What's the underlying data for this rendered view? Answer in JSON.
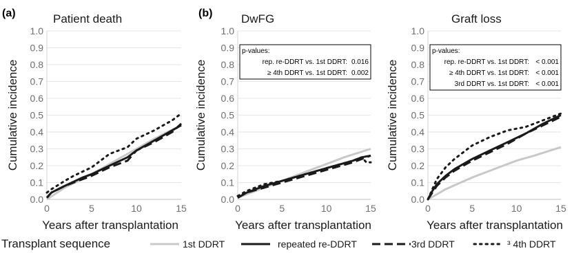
{
  "legend": {
    "title": "Transplant sequence",
    "items": [
      {
        "key": "first",
        "label": "1st DDRT",
        "color": "#c8c8c8",
        "style": "solid"
      },
      {
        "key": "repeated",
        "label": "repeated re-DDRT",
        "color": "#1a1a1a",
        "style": "solid"
      },
      {
        "key": "third",
        "label": "3rd DDRT",
        "color": "#1a1a1a",
        "style": "dashed"
      },
      {
        "key": "fourth",
        "label": "³ 4th DDRT",
        "color": "#1a1a1a",
        "style": "dotted"
      }
    ]
  },
  "chart_data": [
    {
      "type": "line",
      "panel_label": "(a)",
      "title": "Patient death",
      "xlabel": "Years after transplantation",
      "ylabel": "Cumulative incidence",
      "xlim": [
        0,
        15
      ],
      "ylim": [
        0,
        1.0
      ],
      "xticks": [
        0,
        5,
        10,
        15
      ],
      "yticks": [
        0.0,
        0.1,
        0.2,
        0.3,
        0.4,
        0.5,
        0.6,
        0.7,
        0.8,
        0.9,
        1.0
      ],
      "ytick_labels": [
        "0.0",
        "0.1",
        "0.2",
        "0.3",
        "0.4",
        "0.5",
        "0.6",
        "0.7",
        "0.8",
        "0.9",
        "1.0"
      ],
      "annotation": null,
      "series": [
        {
          "key": "first",
          "x": [
            0,
            2,
            5,
            8,
            10,
            12,
            15
          ],
          "y": [
            0.0,
            0.07,
            0.15,
            0.24,
            0.3,
            0.36,
            0.44
          ]
        },
        {
          "key": "repeated",
          "x": [
            0,
            0.5,
            2,
            4,
            5,
            7,
            9,
            10,
            12,
            14,
            15
          ],
          "y": [
            0.01,
            0.04,
            0.08,
            0.13,
            0.15,
            0.2,
            0.25,
            0.29,
            0.35,
            0.41,
            0.44
          ]
        },
        {
          "key": "third",
          "x": [
            0,
            0.5,
            2,
            4,
            5,
            7,
            9,
            10,
            12,
            14,
            15
          ],
          "y": [
            0.01,
            0.04,
            0.08,
            0.12,
            0.14,
            0.19,
            0.23,
            0.29,
            0.34,
            0.4,
            0.45
          ]
        },
        {
          "key": "fourth",
          "x": [
            0,
            0.5,
            2,
            3,
            5,
            7,
            9,
            10,
            12,
            14,
            15
          ],
          "y": [
            0.04,
            0.06,
            0.11,
            0.14,
            0.19,
            0.27,
            0.31,
            0.36,
            0.41,
            0.47,
            0.51
          ]
        }
      ]
    },
    {
      "type": "line",
      "panel_label": "(b)",
      "title": "DwFG",
      "xlabel": "Years after transplantation",
      "ylabel": "Cumulative incidence",
      "xlim": [
        0,
        15
      ],
      "ylim": [
        0,
        1.0
      ],
      "xticks": [
        0,
        5,
        10,
        15
      ],
      "yticks": [
        0.0,
        0.1,
        0.2,
        0.3,
        0.4,
        0.5,
        0.6,
        0.7,
        0.8,
        0.9,
        1.0
      ],
      "ytick_labels": [
        "0.0",
        "0.1",
        "0.2",
        "0.3",
        "0.4",
        "0.5",
        "0.6",
        "0.7",
        "0.8",
        "0.9",
        "1.0"
      ],
      "annotation": {
        "title": "p-values:",
        "rows": [
          {
            "label": "rep. re-DDRT vs. 1st DDRT:",
            "value": "0.016"
          },
          {
            "label": "≥ 4th DDRT vs. 1st DDRT:",
            "value": "0.002"
          }
        ]
      },
      "series": [
        {
          "key": "first",
          "x": [
            0,
            2,
            5,
            8,
            10,
            12,
            15
          ],
          "y": [
            0.01,
            0.05,
            0.11,
            0.17,
            0.21,
            0.25,
            0.3
          ]
        },
        {
          "key": "repeated",
          "x": [
            0,
            1,
            3,
            5,
            7,
            9,
            11,
            13,
            14,
            15
          ],
          "y": [
            0.01,
            0.04,
            0.08,
            0.11,
            0.14,
            0.17,
            0.2,
            0.23,
            0.25,
            0.26
          ]
        },
        {
          "key": "third",
          "x": [
            0,
            1,
            3,
            5,
            7,
            9,
            11,
            13,
            15
          ],
          "y": [
            0.01,
            0.04,
            0.07,
            0.1,
            0.13,
            0.16,
            0.19,
            0.22,
            0.26
          ]
        },
        {
          "key": "fourth",
          "x": [
            0,
            1,
            3,
            5,
            7,
            9,
            11,
            13,
            14,
            14.5,
            15
          ],
          "y": [
            0.02,
            0.05,
            0.09,
            0.11,
            0.14,
            0.17,
            0.2,
            0.23,
            0.25,
            0.22,
            0.22
          ]
        }
      ]
    },
    {
      "type": "line",
      "panel_label": "",
      "title": "Graft loss",
      "xlabel": "Years after transplantation",
      "ylabel": "Cumulative incidence",
      "xlim": [
        0,
        15
      ],
      "ylim": [
        0,
        1.0
      ],
      "xticks": [
        0,
        5,
        10,
        15
      ],
      "yticks": [
        0.0,
        0.1,
        0.2,
        0.3,
        0.4,
        0.5,
        0.6,
        0.7,
        0.8,
        0.9,
        1.0
      ],
      "ytick_labels": [
        "0.0",
        "0.1",
        "0.2",
        "0.3",
        "0.4",
        "0.5",
        "0.6",
        "0.7",
        "0.8",
        "0.9",
        "1.0"
      ],
      "annotation": {
        "title": "p-values:",
        "rows": [
          {
            "label": "rep. re-DDRT vs. 1st DDRT:",
            "value": "< 0.001"
          },
          {
            "label": "≥ 4th DDRT vs. 1st DDRT:",
            "value": "< 0.001"
          },
          {
            "label": "3rd DDRT vs. 1st DDRT:",
            "value": "< 0.001"
          }
        ]
      },
      "series": [
        {
          "key": "first",
          "x": [
            0,
            2,
            5,
            8,
            10,
            12,
            15
          ],
          "y": [
            0.0,
            0.06,
            0.13,
            0.19,
            0.23,
            0.26,
            0.31
          ]
        },
        {
          "key": "repeated",
          "x": [
            0,
            0.5,
            1,
            2,
            3,
            5,
            7,
            9,
            11,
            13,
            15
          ],
          "y": [
            0.0,
            0.05,
            0.09,
            0.14,
            0.18,
            0.24,
            0.29,
            0.34,
            0.39,
            0.45,
            0.5
          ]
        },
        {
          "key": "third",
          "x": [
            0,
            0.5,
            1,
            2,
            3,
            5,
            7,
            9,
            11,
            13,
            15
          ],
          "y": [
            0.0,
            0.04,
            0.08,
            0.13,
            0.17,
            0.23,
            0.28,
            0.33,
            0.39,
            0.44,
            0.49
          ]
        },
        {
          "key": "fourth",
          "x": [
            0,
            0.5,
            1,
            2,
            3,
            5,
            7,
            9,
            11,
            13,
            15
          ],
          "y": [
            0.0,
            0.06,
            0.12,
            0.19,
            0.24,
            0.32,
            0.37,
            0.41,
            0.43,
            0.47,
            0.51
          ]
        }
      ]
    }
  ]
}
